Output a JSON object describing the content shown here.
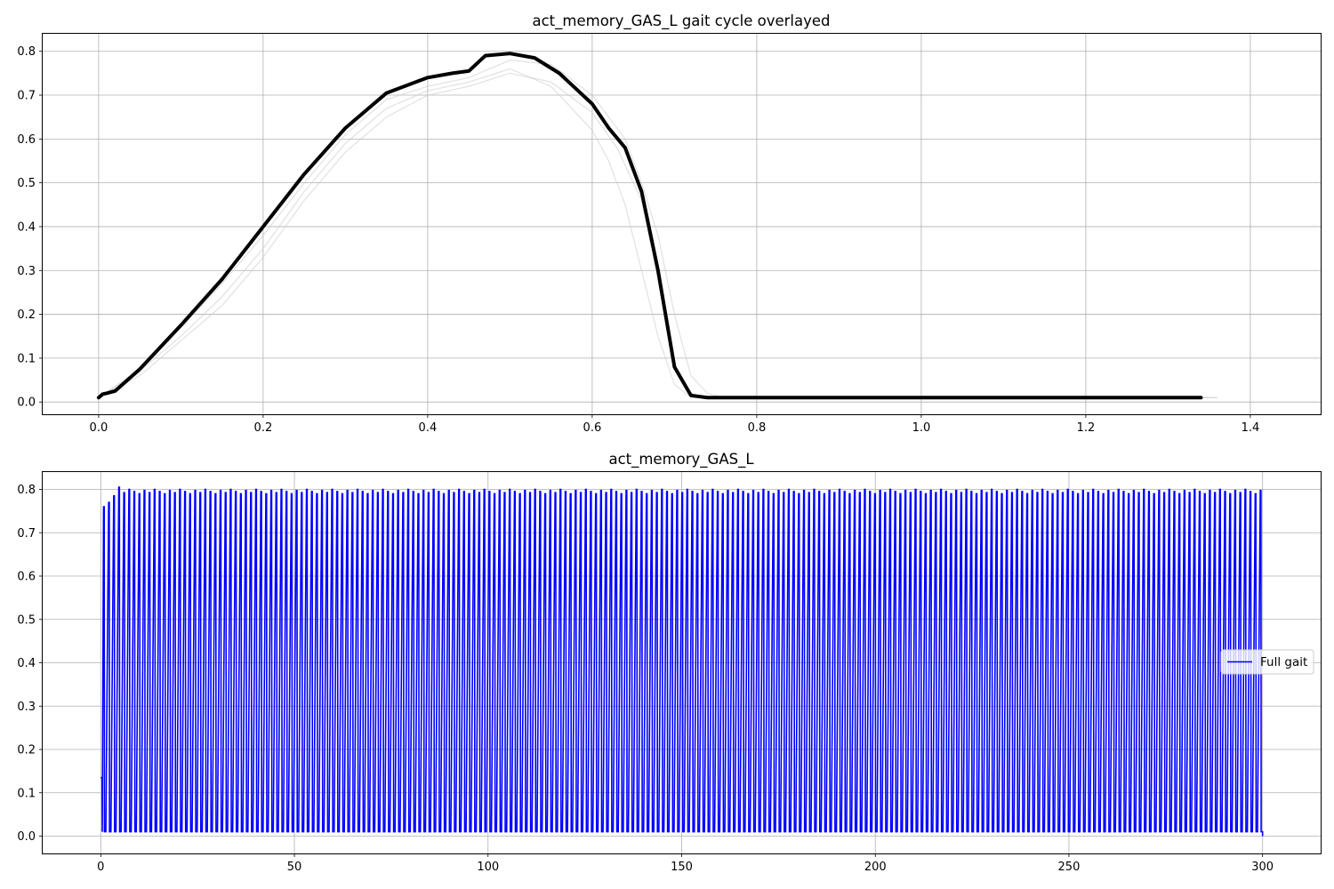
{
  "chart_data": [
    {
      "type": "line",
      "title": "act_memory_GAS_L gait cycle overlayed",
      "xlabel": "",
      "ylabel": "",
      "xlim": [
        -0.068,
        1.4855
      ],
      "ylim": [
        -0.028,
        0.84
      ],
      "xticks": [
        0.0,
        0.2,
        0.4,
        0.6,
        0.8,
        1.0,
        1.2,
        1.4
      ],
      "xtick_labels": [
        "0.0",
        "0.2",
        "0.4",
        "0.6",
        "0.8",
        "1.0",
        "1.2",
        "1.4"
      ],
      "yticks": [
        0.0,
        0.1,
        0.2,
        0.3,
        0.4,
        0.5,
        0.6,
        0.7,
        0.8
      ],
      "ytick_labels": [
        "0.0",
        "0.1",
        "0.2",
        "0.3",
        "0.4",
        "0.5",
        "0.6",
        "0.7",
        "0.8"
      ],
      "grid": true,
      "line_color": "#000000",
      "faint_color": "#cccccc",
      "main_curve": {
        "x": [
          0.0,
          0.005,
          0.01,
          0.02,
          0.05,
          0.1,
          0.15,
          0.2,
          0.25,
          0.3,
          0.35,
          0.4,
          0.43,
          0.45,
          0.47,
          0.5,
          0.53,
          0.56,
          0.6,
          0.62,
          0.64,
          0.66,
          0.68,
          0.7,
          0.72,
          0.74,
          0.8,
          1.0,
          1.2,
          1.34
        ],
        "y": [
          0.01,
          0.018,
          0.02,
          0.025,
          0.075,
          0.175,
          0.28,
          0.4,
          0.52,
          0.625,
          0.705,
          0.74,
          0.75,
          0.755,
          0.79,
          0.795,
          0.785,
          0.75,
          0.68,
          0.625,
          0.58,
          0.48,
          0.3,
          0.08,
          0.015,
          0.01,
          0.01,
          0.01,
          0.01,
          0.01
        ]
      },
      "faint_curves": [
        {
          "x": [
            0.0,
            0.05,
            0.1,
            0.15,
            0.2,
            0.25,
            0.3,
            0.35,
            0.4,
            0.45,
            0.5,
            0.55,
            0.6,
            0.63,
            0.66,
            0.68,
            0.7,
            0.72,
            0.74,
            0.8,
            1.0,
            1.2,
            1.36
          ],
          "y": [
            0.01,
            0.06,
            0.14,
            0.22,
            0.33,
            0.46,
            0.57,
            0.65,
            0.7,
            0.72,
            0.75,
            0.73,
            0.66,
            0.58,
            0.46,
            0.28,
            0.08,
            0.02,
            0.01,
            0.01,
            0.01,
            0.01,
            0.01
          ]
        },
        {
          "x": [
            0.0,
            0.05,
            0.1,
            0.15,
            0.2,
            0.25,
            0.3,
            0.35,
            0.4,
            0.45,
            0.5,
            0.55,
            0.6,
            0.62,
            0.64,
            0.66,
            0.68,
            0.7,
            0.72,
            0.8,
            1.0,
            1.2,
            1.35
          ],
          "y": [
            0.01,
            0.07,
            0.15,
            0.24,
            0.35,
            0.48,
            0.59,
            0.67,
            0.71,
            0.73,
            0.76,
            0.72,
            0.62,
            0.55,
            0.45,
            0.3,
            0.15,
            0.04,
            0.01,
            0.01,
            0.01,
            0.01,
            0.01
          ]
        },
        {
          "x": [
            0.0,
            0.05,
            0.1,
            0.15,
            0.2,
            0.25,
            0.3,
            0.35,
            0.4,
            0.45,
            0.5,
            0.55,
            0.6,
            0.64,
            0.66,
            0.68,
            0.7,
            0.72,
            0.74,
            0.76,
            0.8,
            1.0,
            1.2,
            1.36
          ],
          "y": [
            0.01,
            0.075,
            0.17,
            0.27,
            0.38,
            0.5,
            0.61,
            0.69,
            0.72,
            0.74,
            0.78,
            0.77,
            0.7,
            0.6,
            0.5,
            0.38,
            0.2,
            0.06,
            0.02,
            0.01,
            0.01,
            0.01,
            0.01,
            0.01
          ]
        }
      ]
    },
    {
      "type": "line",
      "title": "act_memory_GAS_L",
      "xlabel": "",
      "ylabel": "",
      "xlim": [
        -15,
        315
      ],
      "ylim": [
        -0.04,
        0.84
      ],
      "xticks": [
        0,
        50,
        100,
        150,
        200,
        250,
        300
      ],
      "xtick_labels": [
        "0",
        "50",
        "100",
        "150",
        "200",
        "250",
        "300"
      ],
      "yticks": [
        0.0,
        0.1,
        0.2,
        0.3,
        0.4,
        0.5,
        0.6,
        0.7,
        0.8
      ],
      "ytick_labels": [
        "0.0",
        "0.1",
        "0.2",
        "0.3",
        "0.4",
        "0.5",
        "0.6",
        "0.7",
        "0.8"
      ],
      "grid": true,
      "legend": {
        "placement": "right",
        "entries": [
          "Full gait"
        ]
      },
      "series": [
        {
          "name": "Full gait",
          "color": "#0000ff",
          "x_start": 0,
          "x_end": 300,
          "start_value": 0.135,
          "end_value": 0.0,
          "baseline": 0.01,
          "n_cycles": 229,
          "first_peaks": [
            0.76,
            0.77,
            0.785,
            0.805
          ],
          "peak_value": 0.8
        }
      ]
    }
  ]
}
